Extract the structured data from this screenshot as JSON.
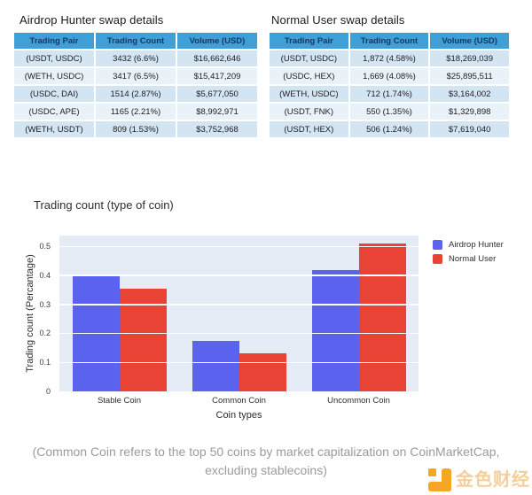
{
  "tables": [
    {
      "title": "Airdrop Hunter swap details",
      "columns": [
        "Trading Pair",
        "Trading Count",
        "Volume (USD)"
      ],
      "rows": [
        [
          "(USDT, USDC)",
          "3432 (6.6%)",
          "$16,662,646"
        ],
        [
          "(WETH, USDC)",
          "3417 (6.5%)",
          "$15,417,209"
        ],
        [
          "(USDC, DAI)",
          "1514 (2.87%)",
          "$5,677,050"
        ],
        [
          "(USDC, APE)",
          "1165 (2.21%)",
          "$8,992,971"
        ],
        [
          "(WETH, USDT)",
          "809 (1.53%)",
          "$3,752,968"
        ]
      ]
    },
    {
      "title": "Normal User swap details",
      "columns": [
        "Trading Pair",
        "Trading Count",
        "Volume (USD)"
      ],
      "rows": [
        [
          "(USDT, USDC)",
          "1,872 (4.58%)",
          "$18,269,039"
        ],
        [
          "(USDC, HEX)",
          "1,669 (4.08%)",
          "$25,895,511"
        ],
        [
          "(WETH, USDC)",
          "712 (1.74%)",
          "$3,164,002"
        ],
        [
          "(USDT, FNK)",
          "550 (1.35%)",
          "$1,329,898"
        ],
        [
          "(USDT, HEX)",
          "506 (1.24%)",
          "$7,619,040"
        ]
      ]
    }
  ],
  "table_style": {
    "header_bg": "#3E9FD9",
    "header_text": "#17375E",
    "row_odd": "#D3E4F3",
    "row_even": "#E9F1F9"
  },
  "chart_data": {
    "type": "bar",
    "title": "Trading count (type of coin)",
    "categories": [
      "Stable Coin",
      "Common Coin",
      "Uncommon Coin"
    ],
    "series": [
      {
        "name": "Airdrop Hunter",
        "color": "#5A62EE",
        "values": [
          0.403,
          0.175,
          0.417
        ]
      },
      {
        "name": "Normal User",
        "color": "#E94335",
        "values": [
          0.355,
          0.13,
          0.51
        ]
      }
    ],
    "xlabel": "Coin types",
    "ylabel": "Trading count (Percantage)",
    "yticks": [
      0,
      0.1,
      0.2,
      0.3,
      0.4,
      0.5
    ],
    "ylim": [
      0,
      0.537
    ],
    "plot_bg": "#E5ECF6",
    "grid": true,
    "legend_position": "right-outside"
  },
  "caption": {
    "line1": "(Common Coin refers to the top 50 coins by market capitalization on CoinMarketCap,",
    "line2": "excluding stablecoins)"
  },
  "watermark": {
    "text": "金色财经",
    "text_color": "#F4CF9B",
    "logo_color": "#F5A625"
  }
}
